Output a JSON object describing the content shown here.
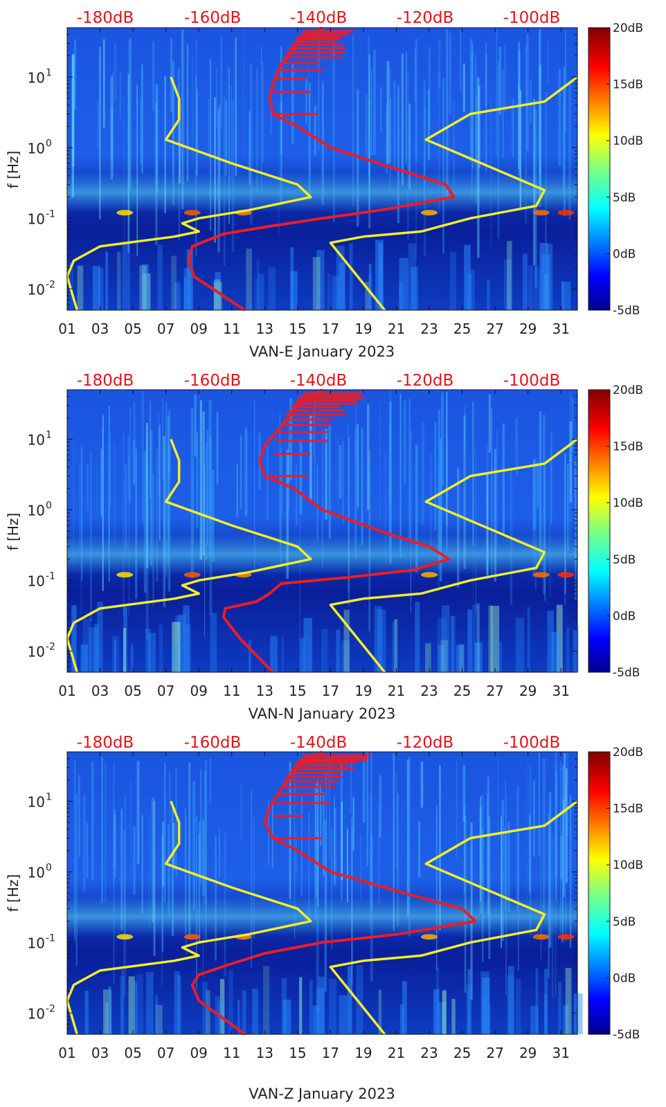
{
  "colors": {
    "background": "#0a2fb8",
    "noise_line": "#ed1c24",
    "model_line": "#f2ee28",
    "top_labels": "#e5141b",
    "axis_text": "#222222"
  },
  "chart_data": [
    {
      "type": "heatmap",
      "title": "",
      "xlabel": "VAN-E January 2023",
      "ylabel": "f [Hz]",
      "x_range": [
        1,
        32
      ],
      "ylim": [
        0.005,
        50
      ],
      "yscale": "log",
      "x_ticks": [
        "01",
        "03",
        "05",
        "07",
        "09",
        "11",
        "13",
        "15",
        "17",
        "19",
        "21",
        "23",
        "25",
        "27",
        "29",
        "31"
      ],
      "y_ticks": [
        {
          "value": 10,
          "base": "10",
          "exp": "1"
        },
        {
          "value": 1,
          "base": "10",
          "exp": "0"
        },
        {
          "value": 0.1,
          "base": "10",
          "exp": "-1"
        },
        {
          "value": 0.01,
          "base": "10",
          "exp": "-2"
        }
      ],
      "top_axis_labels": [
        "-180dB",
        "-160dB",
        "-140dB",
        "-120dB",
        "-100dB"
      ],
      "colorbar": {
        "ticks": [
          "20dB",
          "15dB",
          "10dB",
          "5dB",
          "0dB",
          "-5dB"
        ],
        "range_db": [
          -5,
          20
        ]
      },
      "series": [
        {
          "name": "noise",
          "points": [
            [
              11.8,
              0.005
            ],
            [
              8.7,
              0.015
            ],
            [
              8.4,
              0.025
            ],
            [
              8.6,
              0.04
            ],
            [
              10.5,
              0.06
            ],
            [
              13,
              0.075
            ],
            [
              16.5,
              0.1
            ],
            [
              20,
              0.13
            ],
            [
              24.5,
              0.2
            ],
            [
              24,
              0.3
            ],
            [
              21,
              0.5
            ],
            [
              17,
              1
            ],
            [
              15,
              2
            ],
            [
              13.5,
              3
            ],
            [
              13.3,
              5
            ],
            [
              13.5,
              8
            ],
            [
              14,
              15
            ],
            [
              15,
              30
            ],
            [
              16.5,
              50
            ]
          ]
        },
        {
          "name": "model-left",
          "points": [
            [
              1.6,
              0.005
            ],
            [
              1,
              0.015
            ],
            [
              1.4,
              0.025
            ],
            [
              3,
              0.04
            ],
            [
              7.5,
              0.055
            ],
            [
              9,
              0.065
            ],
            [
              8,
              0.085
            ],
            [
              9,
              0.1
            ],
            [
              12,
              0.13
            ],
            [
              15.8,
              0.2
            ],
            [
              15,
              0.3
            ],
            [
              11,
              0.6
            ],
            [
              7,
              1.3
            ],
            [
              7.8,
              2.5
            ],
            [
              7.8,
              5
            ],
            [
              7.3,
              10
            ]
          ]
        },
        {
          "name": "model-right",
          "points": [
            [
              20.3,
              0.005
            ],
            [
              17,
              0.045
            ],
            [
              19,
              0.055
            ],
            [
              22.5,
              0.065
            ],
            [
              25.5,
              0.1
            ],
            [
              29.5,
              0.15
            ],
            [
              30,
              0.25
            ],
            [
              22.8,
              1.3
            ],
            [
              25.5,
              3
            ],
            [
              30,
              4.5
            ],
            [
              32,
              10
            ]
          ]
        }
      ]
    },
    {
      "type": "heatmap",
      "title": "",
      "xlabel": "VAN-N January 2023",
      "ylabel": "f [Hz]",
      "x_range": [
        1,
        32
      ],
      "ylim": [
        0.005,
        50
      ],
      "yscale": "log",
      "x_ticks": [
        "01",
        "03",
        "05",
        "07",
        "09",
        "11",
        "13",
        "15",
        "17",
        "19",
        "21",
        "23",
        "25",
        "27",
        "29",
        "31"
      ],
      "y_ticks": [
        {
          "value": 10,
          "base": "10",
          "exp": "1"
        },
        {
          "value": 1,
          "base": "10",
          "exp": "0"
        },
        {
          "value": 0.1,
          "base": "10",
          "exp": "-1"
        },
        {
          "value": 0.01,
          "base": "10",
          "exp": "-2"
        }
      ],
      "top_axis_labels": [
        "-180dB",
        "-160dB",
        "-140dB",
        "-120dB",
        "-100dB"
      ],
      "colorbar": {
        "ticks": [
          "20dB",
          "15dB",
          "10dB",
          "5dB",
          "0dB",
          "-5dB"
        ],
        "range_db": [
          -5,
          20
        ]
      },
      "series": [
        {
          "name": "noise",
          "points": [
            [
              13.5,
              0.005
            ],
            [
              11.5,
              0.015
            ],
            [
              10.5,
              0.03
            ],
            [
              10.6,
              0.04
            ],
            [
              12.5,
              0.05
            ],
            [
              13.3,
              0.065
            ],
            [
              14,
              0.09
            ],
            [
              18,
              0.11
            ],
            [
              22,
              0.14
            ],
            [
              24.2,
              0.2
            ],
            [
              23,
              0.3
            ],
            [
              20,
              0.5
            ],
            [
              16.5,
              1
            ],
            [
              14.8,
              2
            ],
            [
              13,
              3
            ],
            [
              12.7,
              5
            ],
            [
              13,
              8
            ],
            [
              14,
              15
            ],
            [
              15,
              30
            ],
            [
              16.5,
              50
            ]
          ]
        },
        {
          "name": "model-left",
          "points": [
            [
              1.6,
              0.005
            ],
            [
              1,
              0.015
            ],
            [
              1.4,
              0.025
            ],
            [
              3,
              0.04
            ],
            [
              7.5,
              0.055
            ],
            [
              9,
              0.065
            ],
            [
              8,
              0.085
            ],
            [
              9,
              0.1
            ],
            [
              12,
              0.13
            ],
            [
              15.8,
              0.2
            ],
            [
              15,
              0.3
            ],
            [
              11,
              0.6
            ],
            [
              7,
              1.3
            ],
            [
              7.8,
              2.5
            ],
            [
              7.8,
              5
            ],
            [
              7.3,
              10
            ]
          ]
        },
        {
          "name": "model-right",
          "points": [
            [
              20.3,
              0.005
            ],
            [
              17,
              0.045
            ],
            [
              19,
              0.055
            ],
            [
              22.5,
              0.065
            ],
            [
              25.5,
              0.1
            ],
            [
              29.5,
              0.15
            ],
            [
              30,
              0.25
            ],
            [
              22.8,
              1.3
            ],
            [
              25.5,
              3
            ],
            [
              30,
              4.5
            ],
            [
              32,
              10
            ]
          ]
        }
      ]
    },
    {
      "type": "heatmap",
      "title": "",
      "xlabel": "VAN-Z January 2023",
      "ylabel": "f [Hz]",
      "x_range": [
        1,
        32
      ],
      "ylim": [
        0.005,
        50
      ],
      "yscale": "log",
      "x_ticks": [
        "01",
        "03",
        "05",
        "07",
        "09",
        "11",
        "13",
        "15",
        "17",
        "19",
        "21",
        "23",
        "25",
        "27",
        "29",
        "31"
      ],
      "y_ticks": [
        {
          "value": 10,
          "base": "10",
          "exp": "1"
        },
        {
          "value": 1,
          "base": "10",
          "exp": "0"
        },
        {
          "value": 0.1,
          "base": "10",
          "exp": "-1"
        },
        {
          "value": 0.01,
          "base": "10",
          "exp": "-2"
        }
      ],
      "top_axis_labels": [
        "-180dB",
        "-160dB",
        "-140dB",
        "-120dB",
        "-100dB"
      ],
      "colorbar": {
        "ticks": [
          "20dB",
          "15dB",
          "10dB",
          "5dB",
          "0dB",
          "-5dB"
        ],
        "range_db": [
          -5,
          20
        ]
      },
      "series": [
        {
          "name": "noise",
          "points": [
            [
              11.8,
              0.005
            ],
            [
              9,
              0.015
            ],
            [
              8.6,
              0.025
            ],
            [
              9,
              0.035
            ],
            [
              11,
              0.05
            ],
            [
              13,
              0.07
            ],
            [
              16.5,
              0.1
            ],
            [
              21,
              0.13
            ],
            [
              25.8,
              0.2
            ],
            [
              25,
              0.3
            ],
            [
              21.5,
              0.5
            ],
            [
              17,
              1
            ],
            [
              15,
              2
            ],
            [
              13.5,
              3
            ],
            [
              13,
              5
            ],
            [
              13.3,
              8
            ],
            [
              14,
              15
            ],
            [
              15,
              30
            ],
            [
              16.5,
              50
            ]
          ]
        },
        {
          "name": "model-left",
          "points": [
            [
              1.6,
              0.005
            ],
            [
              1,
              0.015
            ],
            [
              1.4,
              0.025
            ],
            [
              3,
              0.04
            ],
            [
              7.5,
              0.055
            ],
            [
              9,
              0.065
            ],
            [
              8,
              0.085
            ],
            [
              9,
              0.1
            ],
            [
              12,
              0.13
            ],
            [
              15.8,
              0.2
            ],
            [
              15,
              0.3
            ],
            [
              11,
              0.6
            ],
            [
              7,
              1.3
            ],
            [
              7.8,
              2.5
            ],
            [
              7.8,
              5
            ],
            [
              7.3,
              10
            ]
          ]
        },
        {
          "name": "model-right",
          "points": [
            [
              20.3,
              0.005
            ],
            [
              17,
              0.045
            ],
            [
              19,
              0.055
            ],
            [
              22.5,
              0.065
            ],
            [
              25.5,
              0.1
            ],
            [
              29.5,
              0.15
            ],
            [
              30,
              0.25
            ],
            [
              22.8,
              1.3
            ],
            [
              25.5,
              3
            ],
            [
              30,
              4.5
            ],
            [
              32,
              10
            ]
          ]
        }
      ]
    }
  ]
}
